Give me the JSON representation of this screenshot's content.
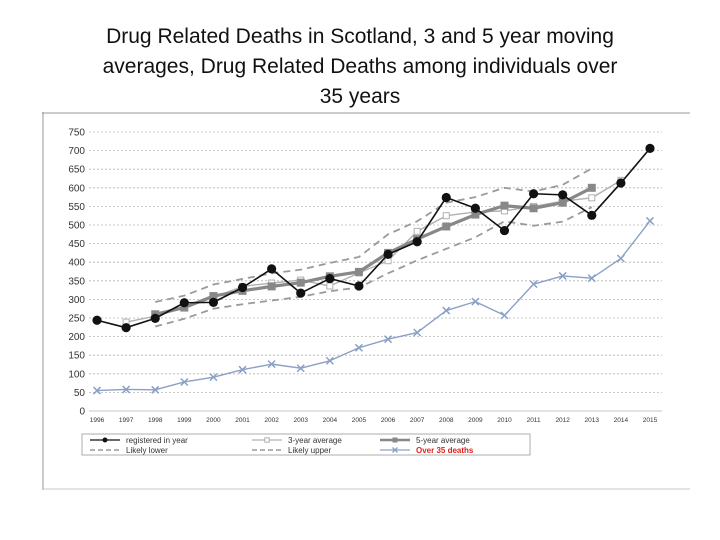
{
  "slide": {
    "title_lines": [
      "Drug Related Deaths in Scotland, 3 and 5 year moving",
      "averages, Drug Related  Deaths among individuals over",
      "35 years"
    ]
  },
  "chart_data": {
    "type": "line",
    "title": "",
    "xlabel": "",
    "ylabel": "",
    "ylim": [
      0,
      750
    ],
    "yticks": [
      0,
      50,
      100,
      150,
      200,
      250,
      300,
      350,
      400,
      450,
      500,
      550,
      600,
      650,
      700,
      750
    ],
    "categories": [
      "1996",
      "1997",
      "1998",
      "1999",
      "2000",
      "2001",
      "2002",
      "2003",
      "2004",
      "2005",
      "2006",
      "2007",
      "2008",
      "2009",
      "2010",
      "2011",
      "2012",
      "2013",
      "2014",
      "2015"
    ],
    "grid": true,
    "legend_position": "bottom",
    "series": [
      {
        "name": "registered in year",
        "color": "#111111",
        "style": "solid",
        "marker": "circle",
        "values": [
          244,
          224,
          249,
          291,
          292,
          332,
          382,
          317,
          356,
          336,
          421,
          455,
          574,
          545,
          485,
          584,
          581,
          526,
          613,
          706
        ]
      },
      {
        "name": "3-year average",
        "color": "#b0b0b0",
        "style": "solid",
        "marker": "open-square",
        "values": [
          null,
          239,
          255,
          277,
          305,
          335,
          344,
          352,
          336,
          371,
          404,
          483,
          525,
          535,
          538,
          550,
          564,
          573,
          620,
          null
        ]
      },
      {
        "name": "5-year average",
        "color": "#888888",
        "style": "solid-thick",
        "marker": "square",
        "values": [
          null,
          null,
          260,
          278,
          309,
          323,
          335,
          345,
          362,
          374,
          425,
          462,
          496,
          528,
          552,
          545,
          560,
          600,
          null,
          null
        ]
      },
      {
        "name": "Likely lower",
        "color": "#9a9a9a",
        "style": "dashed",
        "marker": "none",
        "values": [
          null,
          null,
          227,
          248,
          275,
          287,
          297,
          307,
          322,
          332,
          370,
          405,
          436,
          467,
          510,
          498,
          509,
          548,
          null,
          null
        ]
      },
      {
        "name": "Likely upper",
        "color": "#9a9a9a",
        "style": "dashed",
        "marker": "none",
        "values": [
          null,
          null,
          293,
          310,
          340,
          355,
          370,
          380,
          398,
          414,
          475,
          510,
          560,
          575,
          600,
          590,
          608,
          652,
          null,
          null
        ]
      },
      {
        "name": "Over 35 deaths",
        "color": "#8aa0c6",
        "style": "solid",
        "marker": "x",
        "legend_text_color": "#e02020",
        "values": [
          55,
          58,
          57,
          78,
          91,
          111,
          126,
          115,
          135,
          170,
          193,
          211,
          270,
          294,
          257,
          341,
          363,
          357,
          410,
          511
        ]
      }
    ]
  }
}
